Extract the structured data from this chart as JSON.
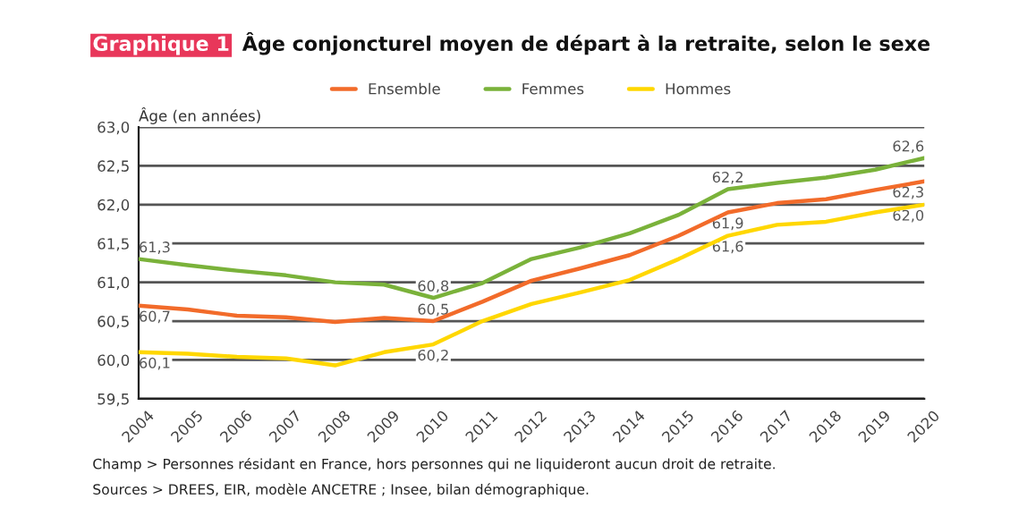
{
  "chart_data": {
    "type": "line",
    "title": "Graphique 1",
    "subtitle": "Âge conjoncturel moyen de départ à la retraite, selon le sexe",
    "ylabel": "Âge (en années)",
    "x": [
      2004,
      2005,
      2006,
      2007,
      2008,
      2009,
      2010,
      2011,
      2012,
      2013,
      2014,
      2015,
      2016,
      2017,
      2018,
      2019,
      2020
    ],
    "series": [
      {
        "name": "Ensemble",
        "color": "#f26b2a",
        "values": [
          60.7,
          60.65,
          60.57,
          60.55,
          60.49,
          60.54,
          60.5,
          60.75,
          61.02,
          61.18,
          61.35,
          61.6,
          61.9,
          62.02,
          62.07,
          62.19,
          62.3
        ],
        "value_labels": [
          "60,7",
          null,
          null,
          null,
          null,
          null,
          "60,5",
          null,
          null,
          null,
          null,
          null,
          "61,9",
          null,
          null,
          null,
          "62,3"
        ]
      },
      {
        "name": "Femmes",
        "color": "#7ab23a",
        "values": [
          61.3,
          61.22,
          61.15,
          61.09,
          61.0,
          60.97,
          60.8,
          60.99,
          61.3,
          61.45,
          61.63,
          61.87,
          62.2,
          62.28,
          62.35,
          62.45,
          62.6
        ],
        "value_labels": [
          "61,3",
          null,
          null,
          null,
          null,
          null,
          "60,8",
          null,
          null,
          null,
          null,
          null,
          "62,2",
          null,
          null,
          null,
          "62,6"
        ]
      },
      {
        "name": "Hommes",
        "color": "#ffd700",
        "values": [
          60.1,
          60.08,
          60.04,
          60.02,
          59.93,
          60.1,
          60.2,
          60.5,
          60.72,
          60.87,
          61.03,
          61.3,
          61.6,
          61.74,
          61.78,
          61.9,
          62.0
        ],
        "value_labels": [
          "60,1",
          null,
          null,
          null,
          null,
          null,
          "60,2",
          null,
          null,
          null,
          null,
          null,
          "61,6",
          null,
          null,
          null,
          "62,0"
        ]
      }
    ],
    "xlim": [
      2004,
      2020
    ],
    "xticks": [
      2004,
      2005,
      2006,
      2007,
      2008,
      2009,
      2010,
      2011,
      2012,
      2013,
      2014,
      2015,
      2016,
      2017,
      2018,
      2019,
      2020
    ],
    "ylim": [
      59.5,
      63.0
    ],
    "yticks": [
      {
        "value": 59.5,
        "label": "59,5"
      },
      {
        "value": 60.0,
        "label": "60,0"
      },
      {
        "value": 60.5,
        "label": "60,5"
      },
      {
        "value": 61.0,
        "label": "61,0"
      },
      {
        "value": 61.5,
        "label": "61,5"
      },
      {
        "value": 62.0,
        "label": "62,0"
      },
      {
        "value": 62.5,
        "label": "62,5"
      },
      {
        "value": 63.0,
        "label": "63,0"
      }
    ],
    "grid": "y",
    "legend": "top",
    "marker": "none",
    "line_style": "solid",
    "annotations": [
      "Champ > Personnes résidant en France, hors personnes qui ne liquideront aucun droit de retraite.",
      "Sources > DREES, EIR, modèle ANCETRE ; Insee, bilan démographique."
    ]
  }
}
